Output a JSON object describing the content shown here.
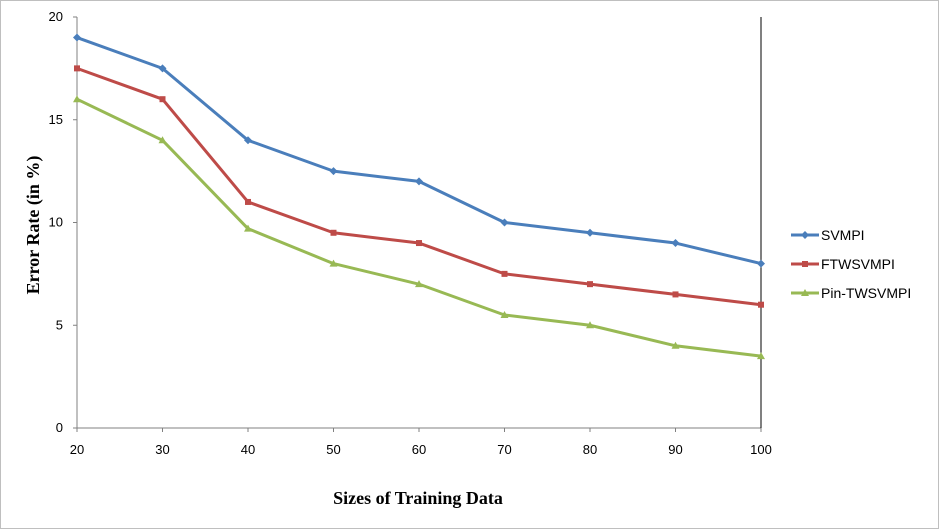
{
  "chart_data": {
    "type": "line",
    "title": "",
    "xlabel": "Sizes of Training Data",
    "ylabel": "Error Rate (in %)",
    "x": [
      20,
      30,
      40,
      50,
      60,
      70,
      80,
      90,
      100
    ],
    "ylim": [
      0,
      20
    ],
    "yticks": [
      0,
      5,
      10,
      15,
      20
    ],
    "grid": false,
    "legend_position": "right",
    "series": [
      {
        "name": "SVMPI",
        "color": "#4a7ebb",
        "marker": "diamond",
        "values": [
          19,
          17.5,
          14,
          12.5,
          12,
          10,
          9.5,
          9,
          8
        ]
      },
      {
        "name": "FTWSVMPI",
        "color": "#be4b48",
        "marker": "square",
        "values": [
          17.5,
          16,
          11,
          9.5,
          9,
          7.5,
          7,
          6.5,
          6
        ]
      },
      {
        "name": "Pin-TWSVMPI",
        "color": "#98b954",
        "marker": "triangle",
        "values": [
          16,
          14,
          9.7,
          8,
          7,
          5.5,
          5,
          4,
          3.5
        ]
      }
    ]
  }
}
